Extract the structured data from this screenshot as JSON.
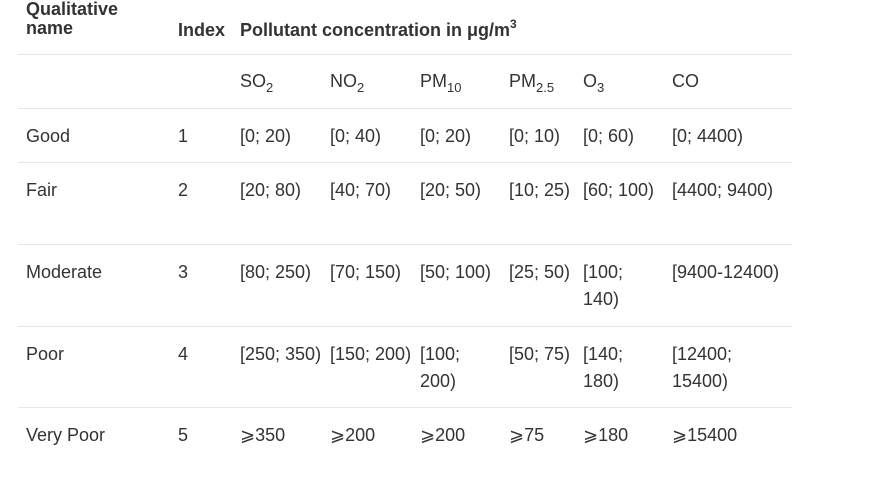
{
  "table": {
    "header": {
      "qualitative_name": "Qualitative name",
      "index": "Index",
      "concentration_prefix": "Pollutant concentration in μg/m",
      "concentration_exponent": "3"
    },
    "pollutants": [
      {
        "base": "SO",
        "sub": "2"
      },
      {
        "base": "NO",
        "sub": "2"
      },
      {
        "base": "PM",
        "sub": "10"
      },
      {
        "base": "PM",
        "sub": "2.5"
      },
      {
        "base": "O",
        "sub": "3"
      },
      {
        "base": "CO",
        "sub": ""
      }
    ],
    "rows": [
      {
        "name": "Good",
        "index": "1",
        "so2": "[0; 20)",
        "no2": "[0; 40)",
        "pm10": "[0; 20)",
        "pm25": "[0; 10)",
        "o3": "[0; 60)",
        "co": "[0; 4400)"
      },
      {
        "name": "Fair",
        "index": "2",
        "so2": "[20; 80)",
        "no2": "[40; 70)",
        "pm10": "[20; 50)",
        "pm25": "[10; 25)",
        "o3": "[60; 100)",
        "co": "[4400; 9400)"
      },
      {
        "name": "Moderate",
        "index": "3",
        "so2": "[80; 250)",
        "no2": "[70; 150)",
        "pm10": "[50; 100)",
        "pm25": "[25; 50)",
        "o3": "[100; 140)",
        "co": "[9400-12400)"
      },
      {
        "name": "Poor",
        "index": "4",
        "so2": "[250; 350)",
        "no2": "[150; 200)",
        "pm10": "[100; 200)",
        "pm25": "[50; 75)",
        "o3": "[140; 180)",
        "co": "[12400; 15400)"
      },
      {
        "name": "Very Poor",
        "index": "5",
        "so2": "⩾350",
        "no2": "⩾200",
        "pm10": "⩾200",
        "pm25": "⩾75",
        "o3": "⩾180",
        "co": "⩾15400"
      }
    ]
  }
}
